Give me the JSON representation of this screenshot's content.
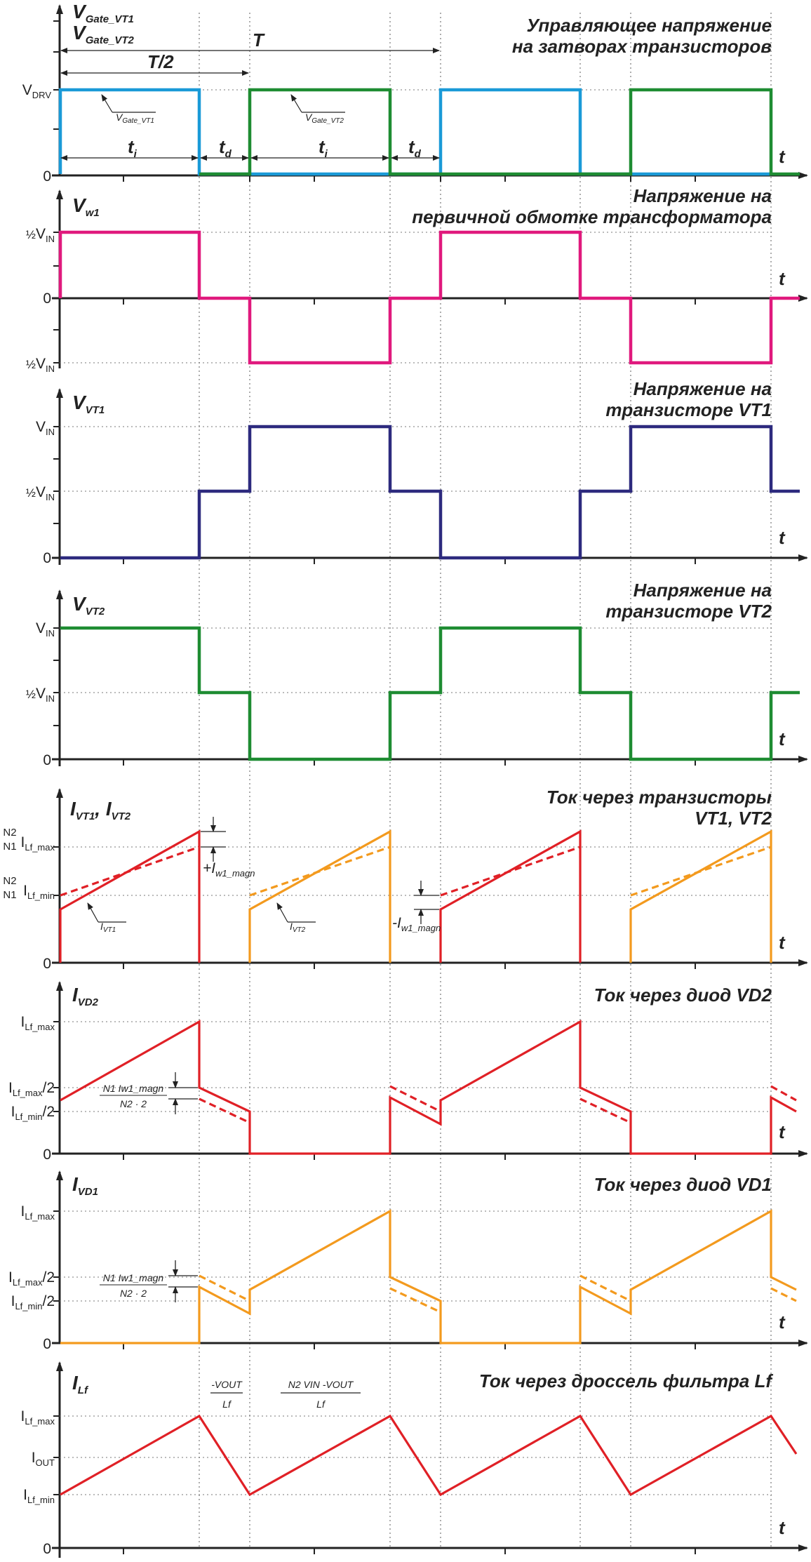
{
  "colors": {
    "cyan": "#1A9AD7",
    "green": "#1E8C32",
    "magenta": "#E0197D",
    "navy": "#2D2A7E",
    "red": "#E02026",
    "orange": "#F39A1E",
    "axis": "#222222",
    "grid": "#777777"
  },
  "icons": [
    "axis-arrow-icon",
    "dimension-arrow-icon"
  ],
  "timing": {
    "T": "T",
    "T_half": "T/2",
    "ti": "t",
    "ti_sub": "i",
    "td": "t",
    "td_sub": "d",
    "t": "t"
  },
  "panels": [
    {
      "id": "gate",
      "title": [
        "Управляющее напряжение",
        "на затворах транзисторов"
      ],
      "signal_main": "V",
      "signal_sub1": "Gate_VT1",
      "signal_sub2": "Gate_VT2",
      "levels": [
        {
          "main": "V",
          "sub": "DRV"
        },
        {
          "main": "0",
          "sub": ""
        }
      ],
      "callouts": [
        {
          "main": "V",
          "sub": "Gate_VT1"
        },
        {
          "main": "V",
          "sub": "Gate_VT2"
        }
      ]
    },
    {
      "id": "w1",
      "title": [
        "Напряжение на",
        "первичной обмотке трансформатора"
      ],
      "signal_main": "V",
      "signal_sub1": "w1",
      "levels": [
        {
          "pre": "½",
          "main": "V",
          "sub": "IN"
        },
        {
          "main": "0",
          "sub": ""
        },
        {
          "pre": "½",
          "main": "V",
          "sub": "IN"
        }
      ]
    },
    {
      "id": "vt1",
      "title": [
        "Напряжение на",
        "транзисторе VT1"
      ],
      "signal_main": "V",
      "signal_sub1": "VT1",
      "levels": [
        {
          "main": "V",
          "sub": "IN"
        },
        {
          "pre": "½",
          "main": "V",
          "sub": "IN"
        },
        {
          "main": "0",
          "sub": ""
        }
      ]
    },
    {
      "id": "vt2",
      "title": [
        "Напряжение на",
        "транзисторе VT2"
      ],
      "signal_main": "V",
      "signal_sub1": "VT2",
      "levels": [
        {
          "main": "V",
          "sub": "IN"
        },
        {
          "pre": "½",
          "main": "V",
          "sub": "IN"
        },
        {
          "main": "0",
          "sub": ""
        }
      ]
    },
    {
      "id": "ivt",
      "title": [
        "Ток через транзисторы",
        "VT1, VT2"
      ],
      "signal_main": "I",
      "signal_sub1": "VT1",
      "signal_main2": "I",
      "signal_sub2": "VT2",
      "levels": [
        {
          "n2n1": "N2/N1",
          "main": "I",
          "sub": "Lf_max"
        },
        {
          "n2n1": "N2/N1",
          "main": "I",
          "sub": "Lf_min"
        },
        {
          "main": "0",
          "sub": ""
        }
      ],
      "callouts": [
        {
          "main": "I",
          "sub": "VT1"
        },
        {
          "main": "I",
          "sub": "VT2"
        },
        {
          "pre": "+I",
          "sub": "w1_magn"
        },
        {
          "pre": "-I",
          "sub": "w1_magn"
        }
      ]
    },
    {
      "id": "vd2",
      "title": [
        "Ток через диод VD2"
      ],
      "signal_main": "I",
      "signal_sub1": "VD2",
      "levels": [
        {
          "main": "I",
          "sub": "Lf_max"
        },
        {
          "main": "I",
          "sub": "Lf_max",
          "post": "/2"
        },
        {
          "main": "I",
          "sub": "Lf_min",
          "post": "/2"
        },
        {
          "main": "0",
          "sub": ""
        }
      ],
      "annotation": {
        "num": "N1 Iw1_magn",
        "den": "N2 · 2"
      }
    },
    {
      "id": "vd1",
      "title": [
        "Ток через диод VD1"
      ],
      "signal_main": "I",
      "signal_sub1": "VD1",
      "levels": [
        {
          "main": "I",
          "sub": "Lf_max"
        },
        {
          "main": "I",
          "sub": "Lf_max",
          "post": "/2"
        },
        {
          "main": "I",
          "sub": "Lf_min",
          "post": "/2"
        },
        {
          "main": "0",
          "sub": ""
        }
      ],
      "annotation": {
        "num": "N1 Iw1_magn",
        "den": "N2 · 2"
      }
    },
    {
      "id": "lf",
      "title": [
        "Ток через дроссель фильтра Lf"
      ],
      "signal_main": "I",
      "signal_sub1": "Lf",
      "levels": [
        {
          "main": "I",
          "sub": "Lf_max"
        },
        {
          "main": "I",
          "sub": "OUT"
        },
        {
          "main": "I",
          "sub": "Lf_min"
        },
        {
          "main": "0",
          "sub": ""
        }
      ],
      "slope_down": {
        "num": "-VOUT",
        "den": "Lf"
      },
      "slope_up": {
        "num": "N2 VIN  -VOUT",
        "den": "Lf"
      }
    }
  ]
}
